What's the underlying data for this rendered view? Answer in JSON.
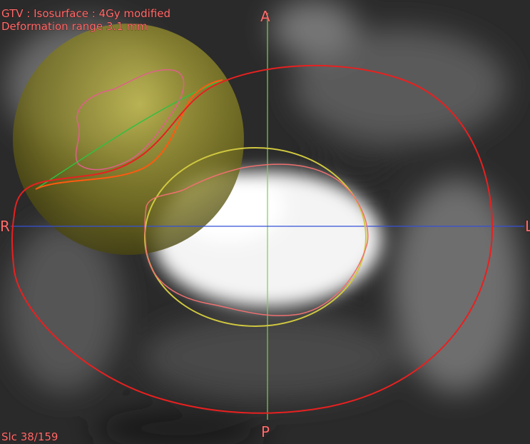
{
  "overlay": {
    "line1": "GTV : Isosurface : 4Gy modified",
    "line2": "Deformation range 3.1 mm"
  },
  "orientation": {
    "anterior": "A",
    "posterior": "P",
    "right": "R",
    "left": "L"
  },
  "slice": "Slc 38/159"
}
